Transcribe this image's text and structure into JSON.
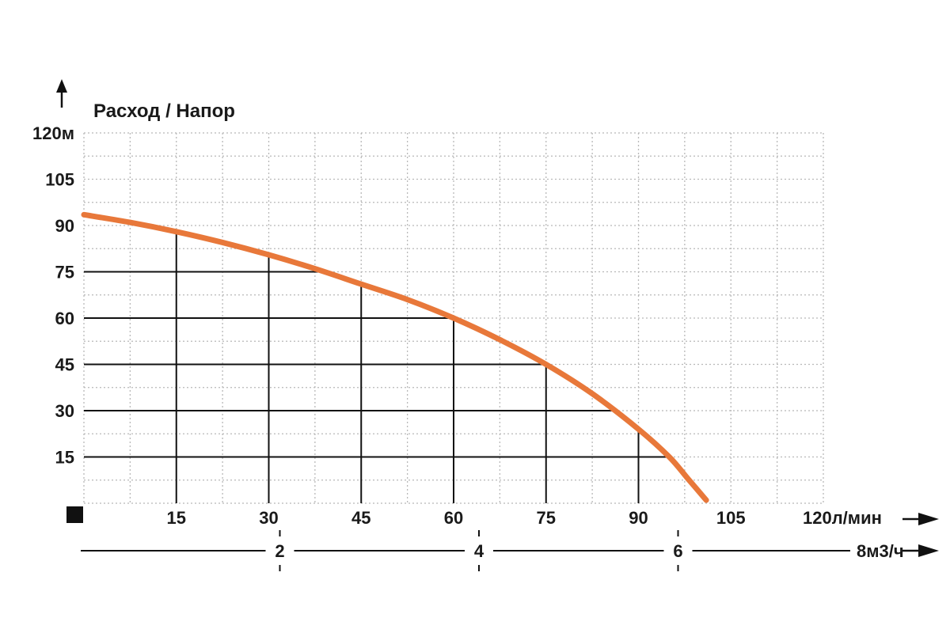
{
  "chart_data": {
    "type": "line",
    "title": "Расход / Напор",
    "y_unit": "м",
    "x_unit": "л/мин",
    "x2_unit": "м3/ч",
    "ylim": [
      0,
      120
    ],
    "xlim": [
      0,
      120
    ],
    "y_ticks": [
      {
        "value": 15,
        "label": "15"
      },
      {
        "value": 30,
        "label": "30"
      },
      {
        "value": 45,
        "label": "45"
      },
      {
        "value": 60,
        "label": "60"
      },
      {
        "value": 75,
        "label": "75"
      },
      {
        "value": 90,
        "label": "90"
      },
      {
        "value": 105,
        "label": "105"
      },
      {
        "value": 120,
        "label": "120м"
      }
    ],
    "x_ticks": [
      {
        "value": 15,
        "label": "15"
      },
      {
        "value": 30,
        "label": "30"
      },
      {
        "value": 45,
        "label": "45"
      },
      {
        "value": 60,
        "label": "60"
      },
      {
        "value": 75,
        "label": "75"
      },
      {
        "value": 90,
        "label": "90"
      },
      {
        "value": 105,
        "label": "105"
      },
      {
        "value": 120,
        "label": "120л/мин"
      }
    ],
    "x2_ticks": [
      {
        "value": 2,
        "label": "2"
      },
      {
        "value": 4,
        "label": "4"
      },
      {
        "value": 6,
        "label": "6"
      },
      {
        "value": 8,
        "label": "8м3/ч"
      }
    ],
    "x2_range": [
      0,
      8.7
    ],
    "grid": true,
    "series": [
      {
        "color": "#e8783a",
        "x": [
          0,
          7.5,
          15,
          22.5,
          30,
          37.5,
          45,
          52.5,
          60,
          67.5,
          75,
          82.5,
          90,
          95,
          98,
          101
        ],
        "y": [
          93.5,
          91,
          88,
          84.5,
          80.5,
          76,
          71,
          66,
          60,
          53,
          45,
          35.5,
          24,
          15,
          8,
          1
        ]
      }
    ]
  }
}
